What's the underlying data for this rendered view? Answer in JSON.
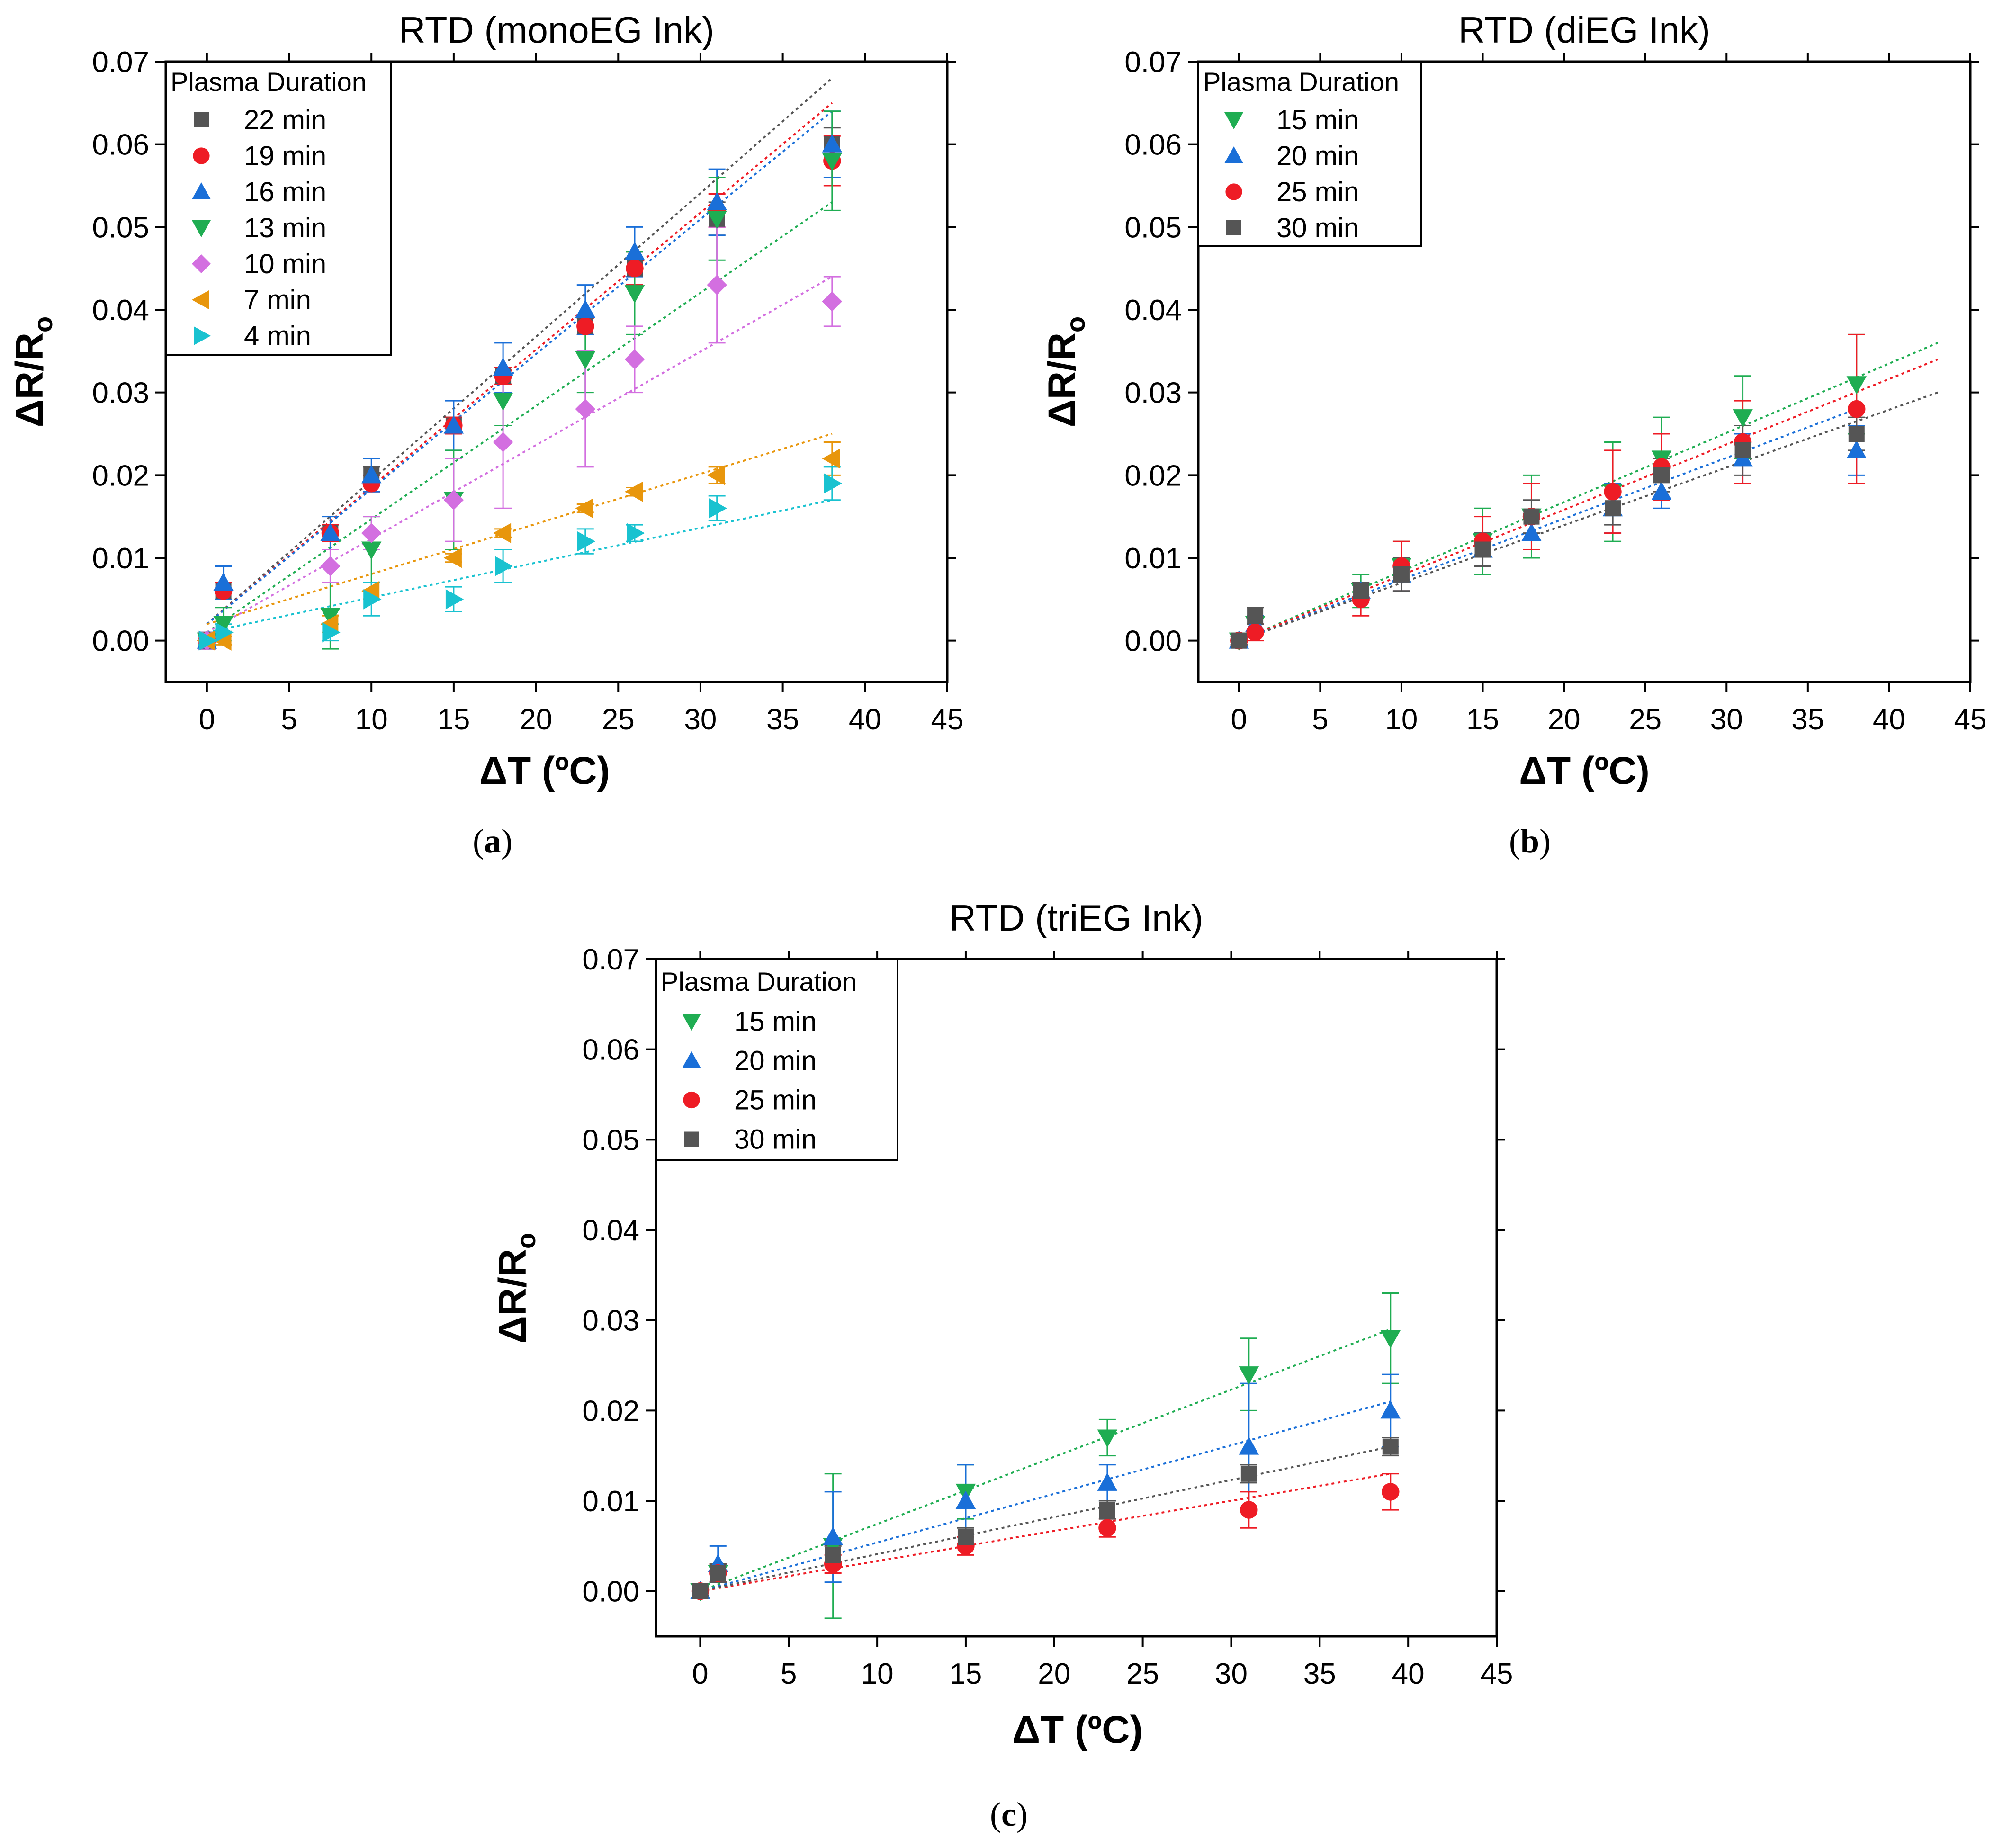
{
  "chart_data": [
    {
      "type": "scatter",
      "title": "RTD (monoEG Ink)",
      "xlabel": "ΔT (ºC)",
      "ylabel_main": "ΔR/R",
      "ylabel_sub": "o",
      "caption": "(a)",
      "xlim": [
        -2.5,
        45
      ],
      "ylim": [
        -0.005,
        0.07
      ],
      "xticks": [
        0,
        5,
        10,
        15,
        20,
        25,
        30,
        35,
        40,
        45
      ],
      "yticks": [
        0.0,
        0.01,
        0.02,
        0.03,
        0.04,
        0.05,
        0.06,
        0.07
      ],
      "ytick_labels": [
        "0.00",
        "0.01",
        "0.02",
        "0.03",
        "0.04",
        "0.05",
        "0.06",
        "0.07"
      ],
      "legend_title": "Plasma Duration",
      "legend_position": "top-left",
      "series": [
        {
          "name": "22 min",
          "color": "#555555",
          "marker": "square",
          "x": [
            0,
            1,
            7.5,
            10,
            15,
            18,
            23,
            26,
            31,
            38
          ],
          "y": [
            0.0,
            0.006,
            0.013,
            0.02,
            0.026,
            0.032,
            0.038,
            0.045,
            0.051,
            0.06
          ],
          "err": [
            0.001,
            0.001,
            0.001,
            0.001,
            0.001,
            0.001,
            0.001,
            0.002,
            0.002,
            0.002
          ],
          "fit": [
            [
              0,
              0.002
            ],
            [
              38,
              0.068
            ]
          ]
        },
        {
          "name": "19 min",
          "color": "#ee1c25",
          "marker": "circle",
          "x": [
            0,
            1,
            7.5,
            10,
            15,
            18,
            23,
            26,
            31,
            38
          ],
          "y": [
            0.0,
            0.006,
            0.013,
            0.019,
            0.026,
            0.032,
            0.038,
            0.045,
            0.052,
            0.058
          ],
          "err": [
            0.001,
            0.001,
            0.001,
            0.001,
            0.001,
            0.001,
            0.001,
            0.002,
            0.002,
            0.003
          ],
          "fit": [
            [
              0,
              0.002
            ],
            [
              38,
              0.065
            ]
          ]
        },
        {
          "name": "16 min",
          "color": "#1a6fd8",
          "marker": "triangle-up",
          "x": [
            0,
            1,
            7.5,
            10,
            15,
            18,
            23,
            26,
            31,
            38
          ],
          "y": [
            0.0,
            0.007,
            0.013,
            0.02,
            0.026,
            0.033,
            0.04,
            0.047,
            0.053,
            0.06
          ],
          "err": [
            0.001,
            0.002,
            0.002,
            0.002,
            0.003,
            0.003,
            0.003,
            0.003,
            0.004,
            0.004
          ],
          "fit": [
            [
              0,
              0.002
            ],
            [
              38,
              0.064
            ]
          ]
        },
        {
          "name": "13 min",
          "color": "#1fad52",
          "marker": "triangle-down",
          "x": [
            0,
            1,
            7.5,
            10,
            15,
            18,
            23,
            26,
            31,
            38
          ],
          "y": [
            0.0,
            0.002,
            0.003,
            0.011,
            0.017,
            0.029,
            0.034,
            0.042,
            0.051,
            0.058
          ],
          "err": [
            0.001,
            0.002,
            0.004,
            0.004,
            0.006,
            0.003,
            0.004,
            0.005,
            0.005,
            0.006
          ],
          "fit": [
            [
              0,
              0.001
            ],
            [
              38,
              0.053
            ]
          ]
        },
        {
          "name": "10 min",
          "color": "#d36fe0",
          "marker": "diamond",
          "x": [
            0,
            7.5,
            10,
            15,
            18,
            23,
            26,
            31,
            38
          ],
          "y": [
            0.0,
            0.009,
            0.013,
            0.017,
            0.024,
            0.028,
            0.034,
            0.043,
            0.041
          ],
          "err": [
            0.001,
            0.002,
            0.002,
            0.005,
            0.008,
            0.007,
            0.004,
            0.007,
            0.003
          ],
          "fit": [
            [
              0,
              0.001
            ],
            [
              38,
              0.044
            ]
          ]
        },
        {
          "name": "7 min",
          "color": "#e8960c",
          "marker": "triangle-left",
          "x": [
            0,
            1,
            7.5,
            10,
            15,
            18,
            23,
            26,
            31,
            38
          ],
          "y": [
            0.0,
            0.0,
            0.002,
            0.006,
            0.01,
            0.013,
            0.016,
            0.018,
            0.02,
            0.022
          ],
          "err": [
            0.0005,
            0.0005,
            0.001,
            0.001,
            0.0005,
            0.0005,
            0.0005,
            0.0005,
            0.001,
            0.002
          ],
          "fit": [
            [
              0,
              0.002
            ],
            [
              38,
              0.025
            ]
          ]
        },
        {
          "name": "4 min",
          "color": "#19c2d0",
          "marker": "triangle-right",
          "x": [
            0,
            1,
            7.5,
            10,
            15,
            18,
            23,
            26,
            31,
            38
          ],
          "y": [
            0.0,
            0.001,
            0.001,
            0.005,
            0.005,
            0.009,
            0.012,
            0.013,
            0.016,
            0.019
          ],
          "err": [
            0.0005,
            0.001,
            0.001,
            0.002,
            0.0015,
            0.002,
            0.0015,
            0.001,
            0.0015,
            0.002
          ],
          "fit": [
            [
              0,
              0.001
            ],
            [
              38,
              0.017
            ]
          ]
        }
      ]
    },
    {
      "type": "scatter",
      "title": "RTD (diEG Ink)",
      "xlabel": "ΔT (ºC)",
      "ylabel_main": "ΔR/R",
      "ylabel_sub": "o",
      "caption": "(b)",
      "xlim": [
        -2.5,
        45
      ],
      "ylim": [
        -0.005,
        0.07
      ],
      "xticks": [
        0,
        5,
        10,
        15,
        20,
        25,
        30,
        35,
        40,
        45
      ],
      "yticks": [
        0.0,
        0.01,
        0.02,
        0.03,
        0.04,
        0.05,
        0.06,
        0.07
      ],
      "ytick_labels": [
        "0.00",
        "0.01",
        "0.02",
        "0.03",
        "0.04",
        "0.05",
        "0.06",
        "0.07"
      ],
      "legend_title": "Plasma Duration",
      "legend_position": "top-left",
      "series": [
        {
          "name": "15 min",
          "color": "#1fad52",
          "marker": "triangle-down",
          "x": [
            0,
            1,
            7.5,
            10,
            15,
            18,
            23,
            26,
            31,
            38
          ],
          "y": [
            0.0,
            0.002,
            0.006,
            0.009,
            0.012,
            0.015,
            0.018,
            0.022,
            0.027,
            0.031
          ],
          "err": [
            0.0005,
            0.001,
            0.002,
            0.003,
            0.004,
            0.005,
            0.006,
            0.005,
            0.005,
            0.006
          ],
          "fit": [
            [
              0,
              0.0
            ],
            [
              43,
              0.036
            ]
          ]
        },
        {
          "name": "20 min",
          "color": "#1a6fd8",
          "marker": "triangle-up",
          "x": [
            0,
            1,
            7.5,
            10,
            15,
            18,
            23,
            26,
            31,
            38
          ],
          "y": [
            0.0,
            0.002,
            0.006,
            0.008,
            0.011,
            0.013,
            0.016,
            0.018,
            0.022,
            0.023
          ],
          "err": [
            0.0005,
            0.001,
            0.001,
            0.002,
            0.002,
            0.002,
            0.003,
            0.002,
            0.003,
            0.003
          ],
          "fit": [
            [
              0,
              0.0
            ],
            [
              38,
              0.028
            ]
          ]
        },
        {
          "name": "25 min",
          "color": "#ee1c25",
          "marker": "circle",
          "x": [
            0,
            1,
            7.5,
            10,
            15,
            18,
            23,
            26,
            31,
            38
          ],
          "y": [
            0.0,
            0.001,
            0.005,
            0.009,
            0.012,
            0.015,
            0.018,
            0.021,
            0.024,
            0.028
          ],
          "err": [
            0.0005,
            0.001,
            0.002,
            0.003,
            0.003,
            0.004,
            0.005,
            0.004,
            0.005,
            0.009
          ],
          "fit": [
            [
              0,
              0.0
            ],
            [
              43,
              0.034
            ]
          ]
        },
        {
          "name": "30 min",
          "color": "#555555",
          "marker": "square",
          "x": [
            0,
            1,
            7.5,
            10,
            15,
            18,
            23,
            26,
            31,
            38
          ],
          "y": [
            0.0,
            0.003,
            0.006,
            0.008,
            0.011,
            0.015,
            0.016,
            0.02,
            0.023,
            0.025
          ],
          "err": [
            0.0005,
            0.001,
            0.001,
            0.002,
            0.002,
            0.002,
            0.002,
            0.002,
            0.003,
            0.002
          ],
          "fit": [
            [
              0,
              0.0
            ],
            [
              43,
              0.03
            ]
          ]
        }
      ]
    },
    {
      "type": "scatter",
      "title": "RTD (triEG Ink)",
      "xlabel": "ΔT (ºC)",
      "ylabel_main": "ΔR/R",
      "ylabel_sub": "o",
      "caption": "(c)",
      "xlim": [
        -2.5,
        45
      ],
      "ylim": [
        -0.005,
        0.07
      ],
      "xticks": [
        0,
        5,
        10,
        15,
        20,
        25,
        30,
        35,
        40,
        45
      ],
      "yticks": [
        0.0,
        0.01,
        0.02,
        0.03,
        0.04,
        0.05,
        0.06,
        0.07
      ],
      "ytick_labels": [
        "0.00",
        "0.01",
        "0.02",
        "0.03",
        "0.04",
        "0.05",
        "0.06",
        "0.07"
      ],
      "legend_title": "Plasma Duration",
      "legend_position": "top-left",
      "series": [
        {
          "name": "15 min",
          "color": "#1fad52",
          "marker": "triangle-down",
          "x": [
            0,
            1,
            7.5,
            15,
            23,
            31,
            39
          ],
          "y": [
            0.0,
            0.002,
            0.005,
            0.011,
            0.017,
            0.024,
            0.028
          ],
          "err": [
            0.0005,
            0.001,
            0.008,
            0.003,
            0.002,
            0.004,
            0.005
          ],
          "fit": [
            [
              0,
              0.0
            ],
            [
              39,
              0.029
            ]
          ]
        },
        {
          "name": "20 min",
          "color": "#1a6fd8",
          "marker": "triangle-up",
          "x": [
            0,
            1,
            7.5,
            15,
            23,
            31,
            39
          ],
          "y": [
            0.0,
            0.003,
            0.006,
            0.01,
            0.012,
            0.016,
            0.02
          ],
          "err": [
            0.0005,
            0.002,
            0.005,
            0.004,
            0.002,
            0.007,
            0.004
          ],
          "fit": [
            [
              0,
              0.0
            ],
            [
              39,
              0.021
            ]
          ]
        },
        {
          "name": "25 min",
          "color": "#ee1c25",
          "marker": "circle",
          "x": [
            0,
            1,
            7.5,
            15,
            23,
            31,
            39
          ],
          "y": [
            0.0,
            0.002,
            0.003,
            0.005,
            0.007,
            0.009,
            0.011
          ],
          "err": [
            0.0005,
            0.001,
            0.001,
            0.001,
            0.001,
            0.002,
            0.002
          ],
          "fit": [
            [
              0,
              0.0
            ],
            [
              39,
              0.013
            ]
          ]
        },
        {
          "name": "30 min",
          "color": "#555555",
          "marker": "square",
          "x": [
            0,
            1,
            7.5,
            15,
            23,
            31,
            39
          ],
          "y": [
            0.0,
            0.002,
            0.004,
            0.006,
            0.009,
            0.013,
            0.016
          ],
          "err": [
            0.0005,
            0.001,
            0.001,
            0.001,
            0.001,
            0.001,
            0.001
          ],
          "fit": [
            [
              0,
              0.0
            ],
            [
              39,
              0.016
            ]
          ]
        }
      ]
    }
  ]
}
